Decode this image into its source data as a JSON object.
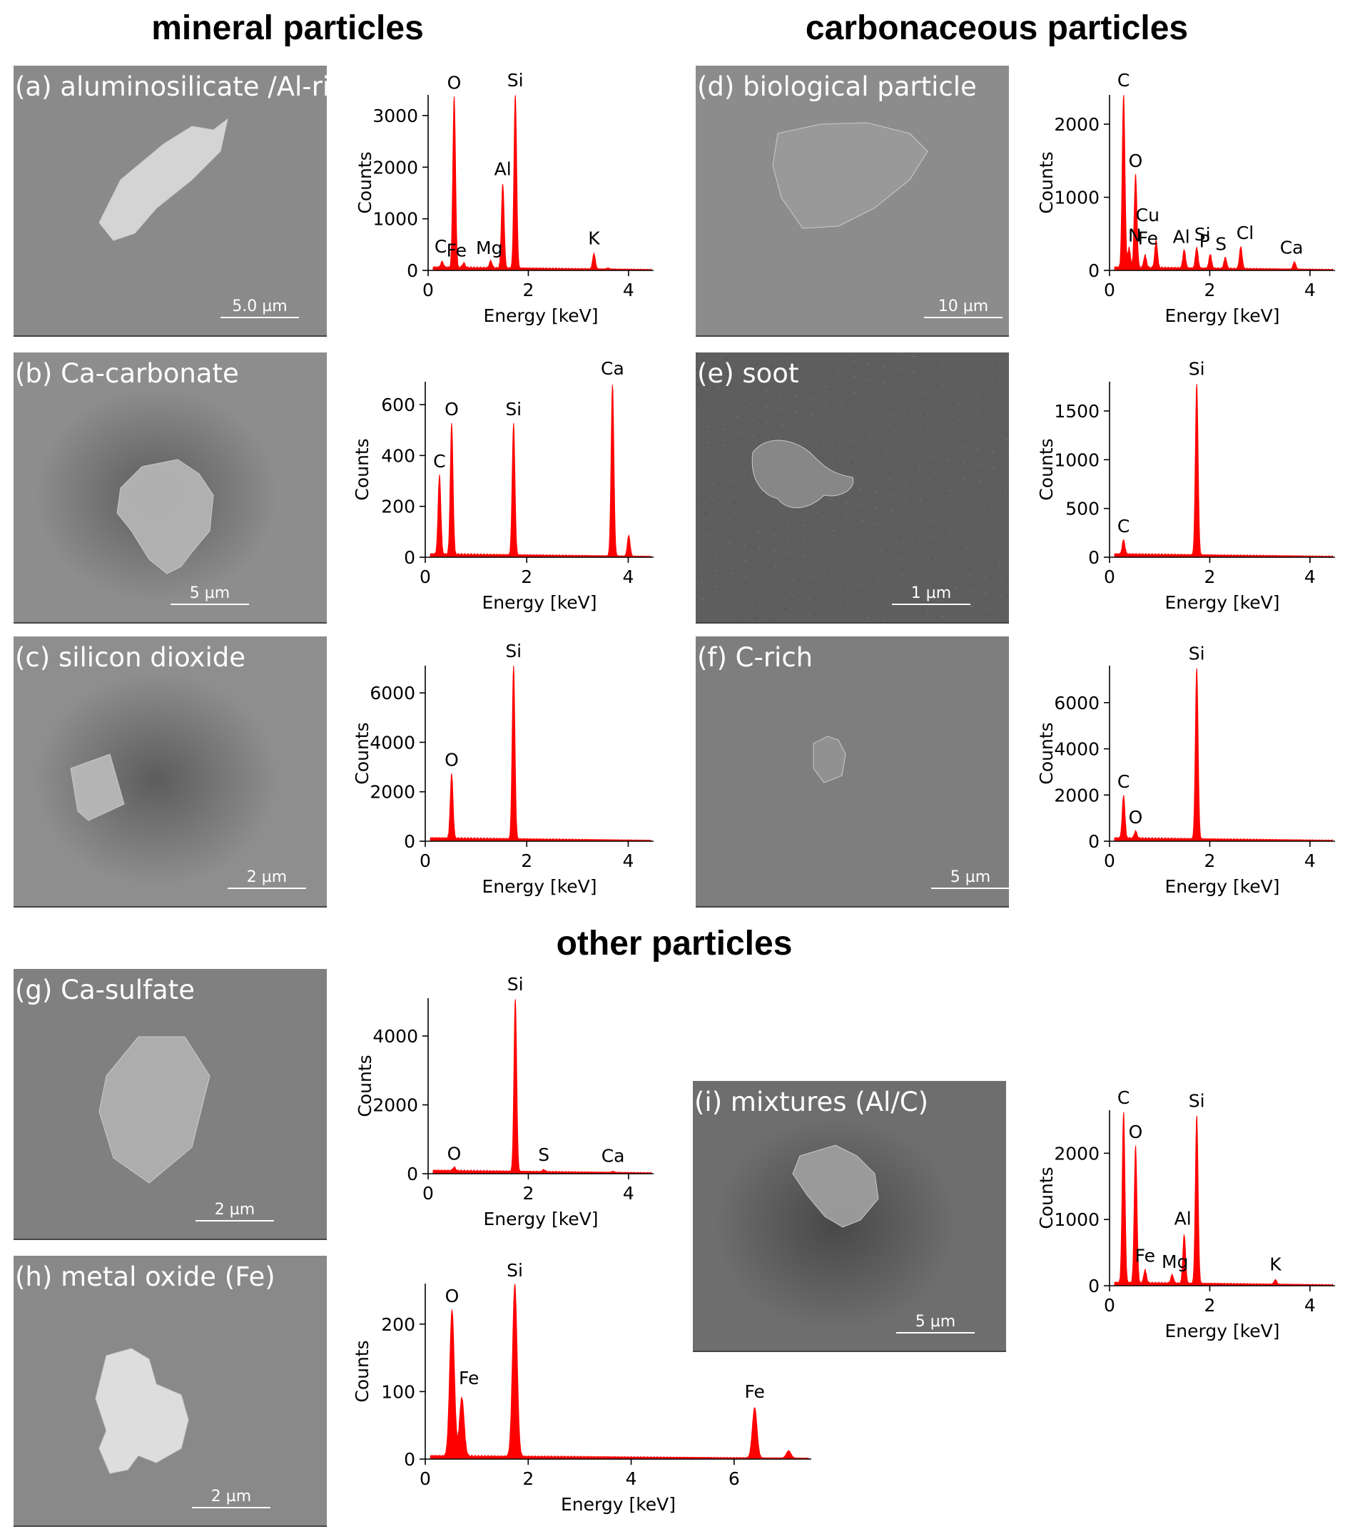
{
  "section_titles": {
    "mineral": "mineral particles",
    "carbonaceous": "carbonaceous particles",
    "other": "other particles"
  },
  "colors": {
    "spectrum": "#ff0000"
  },
  "panels": [
    {
      "id": "a",
      "label": "(a) aluminosilicate /Al-rich",
      "scale_bar": "5.0 µm",
      "background": "#8a8a8a"
    },
    {
      "id": "b",
      "label": "(b) Ca-carbonate",
      "scale_bar": "5 µm",
      "background": "#8d8d8d"
    },
    {
      "id": "c",
      "label": "(c) silicon dioxide",
      "scale_bar": "2 µm",
      "background": "#8e8e8e"
    },
    {
      "id": "d",
      "label": "(d) biological particle",
      "scale_bar": "10 µm",
      "background": "#8c8c8c"
    },
    {
      "id": "e",
      "label": "(e) soot",
      "scale_bar": "1 µm",
      "background": "#5e5e5e"
    },
    {
      "id": "f",
      "label": "(f) C-rich",
      "scale_bar": "5 µm",
      "background": "#7e7e7e"
    },
    {
      "id": "g",
      "label": "(g) Ca-sulfate",
      "scale_bar": "2 µm",
      "background": "#808080"
    },
    {
      "id": "h",
      "label": "(h) metal oxide (Fe)",
      "scale_bar": "2 µm",
      "background": "#898989"
    },
    {
      "id": "i",
      "label": "(i) mixtures (Al/C)",
      "scale_bar": "5 µm",
      "background": "#6e6e6e"
    }
  ],
  "chart_data": [
    {
      "panel": "a",
      "type": "area",
      "xlabel": "Energy [keV]",
      "ylabel": "Counts",
      "xlim": [
        0,
        4.5
      ],
      "ylim": [
        0,
        3400
      ],
      "xticks": [
        0,
        2,
        4
      ],
      "yticks": [
        0,
        1000,
        2000,
        3000
      ],
      "peaks": [
        {
          "x": 0.28,
          "y": 150,
          "label": "C"
        },
        {
          "x": 0.52,
          "y": 3350,
          "label": "O"
        },
        {
          "x": 0.71,
          "y": 130,
          "label": "Fe"
        },
        {
          "x": 1.25,
          "y": 180,
          "label": "Mg"
        },
        {
          "x": 1.49,
          "y": 1680,
          "label": "Al"
        },
        {
          "x": 1.74,
          "y": 3400,
          "label": "Si"
        },
        {
          "x": 3.31,
          "y": 340,
          "label": "K"
        },
        {
          "x": 3.59,
          "y": 60,
          "label": ""
        }
      ]
    },
    {
      "panel": "b",
      "type": "area",
      "xlabel": "Energy [keV]",
      "ylabel": "Counts",
      "xlim": [
        0,
        4.5
      ],
      "ylim": [
        0,
        690
      ],
      "xticks": [
        0,
        2,
        4
      ],
      "yticks": [
        0,
        200,
        400,
        600
      ],
      "peaks": [
        {
          "x": 0.28,
          "y": 320,
          "label": "C"
        },
        {
          "x": 0.52,
          "y": 525,
          "label": "O"
        },
        {
          "x": 1.74,
          "y": 525,
          "label": "Si"
        },
        {
          "x": 3.69,
          "y": 685,
          "label": "Ca"
        },
        {
          "x": 4.01,
          "y": 90,
          "label": ""
        }
      ]
    },
    {
      "panel": "c",
      "type": "area",
      "xlabel": "Energy [keV]",
      "ylabel": "Counts",
      "xlim": [
        0,
        4.5
      ],
      "ylim": [
        0,
        7100
      ],
      "xticks": [
        0,
        2,
        4
      ],
      "yticks": [
        0,
        2000,
        4000,
        6000
      ],
      "peaks": [
        {
          "x": 0.52,
          "y": 2700,
          "label": "O"
        },
        {
          "x": 1.74,
          "y": 7100,
          "label": "Si"
        }
      ]
    },
    {
      "panel": "d",
      "type": "area",
      "xlabel": "Energy [keV]",
      "ylabel": "Counts",
      "xlim": [
        0,
        4.5
      ],
      "ylim": [
        0,
        2400
      ],
      "xticks": [
        0,
        2,
        4
      ],
      "yticks": [
        0,
        1000,
        2000
      ],
      "peaks": [
        {
          "x": 0.28,
          "y": 2400,
          "label": "C"
        },
        {
          "x": 0.39,
          "y": 300,
          "label": "N"
        },
        {
          "x": 0.52,
          "y": 1300,
          "label": "O"
        },
        {
          "x": 0.71,
          "y": 200,
          "label": "Fe"
        },
        {
          "x": 0.93,
          "y": 400,
          "label": "Cu"
        },
        {
          "x": 1.49,
          "y": 280,
          "label": "Al"
        },
        {
          "x": 1.74,
          "y": 310,
          "label": "Si"
        },
        {
          "x": 2.01,
          "y": 220,
          "label": "P"
        },
        {
          "x": 2.31,
          "y": 180,
          "label": "S"
        },
        {
          "x": 2.62,
          "y": 330,
          "label": "Cl"
        },
        {
          "x": 3.69,
          "y": 130,
          "label": "Ca"
        }
      ]
    },
    {
      "panel": "e",
      "type": "area",
      "xlabel": "Energy [keV]",
      "ylabel": "Counts",
      "xlim": [
        0,
        4.5
      ],
      "ylim": [
        0,
        1800
      ],
      "xticks": [
        0,
        2,
        4
      ],
      "yticks": [
        0,
        500,
        1000,
        1500
      ],
      "peaks": [
        {
          "x": 0.28,
          "y": 170,
          "label": "C"
        },
        {
          "x": 1.74,
          "y": 1780,
          "label": "Si"
        }
      ]
    },
    {
      "panel": "f",
      "type": "area",
      "xlabel": "Energy [keV]",
      "ylabel": "Counts",
      "xlim": [
        0,
        4.5
      ],
      "ylim": [
        0,
        7600
      ],
      "xticks": [
        0,
        2,
        4
      ],
      "yticks": [
        0,
        2000,
        4000,
        6000
      ],
      "peaks": [
        {
          "x": 0.28,
          "y": 1950,
          "label": "C"
        },
        {
          "x": 0.52,
          "y": 400,
          "label": "O"
        },
        {
          "x": 1.74,
          "y": 7500,
          "label": "Si"
        }
      ]
    },
    {
      "panel": "g",
      "type": "area",
      "xlabel": "Energy [keV]",
      "ylabel": "Counts",
      "xlim": [
        0,
        4.5
      ],
      "ylim": [
        0,
        5100
      ],
      "xticks": [
        0,
        2,
        4
      ],
      "yticks": [
        0,
        2000,
        4000
      ],
      "peaks": [
        {
          "x": 0.52,
          "y": 160,
          "label": "O"
        },
        {
          "x": 1.74,
          "y": 5080,
          "label": "Si"
        },
        {
          "x": 2.31,
          "y": 120,
          "label": "S"
        },
        {
          "x": 3.69,
          "y": 90,
          "label": "Ca"
        }
      ]
    },
    {
      "panel": "h",
      "type": "area",
      "xlabel": "Energy [keV]",
      "ylabel": "Counts",
      "xlim": [
        0,
        7.5
      ],
      "ylim": [
        0,
        260
      ],
      "xticks": [
        0,
        2,
        4,
        6
      ],
      "yticks": [
        0,
        100,
        200
      ],
      "peaks": [
        {
          "x": 0.52,
          "y": 220,
          "label": "O"
        },
        {
          "x": 0.71,
          "y": 90,
          "label": "Fe"
        },
        {
          "x": 1.74,
          "y": 258,
          "label": "Si"
        },
        {
          "x": 6.4,
          "y": 78,
          "label": "Fe"
        },
        {
          "x": 7.06,
          "y": 14,
          "label": ""
        }
      ]
    },
    {
      "panel": "i",
      "type": "area",
      "xlabel": "Energy [keV]",
      "ylabel": "Counts",
      "xlim": [
        0,
        4.5
      ],
      "ylim": [
        0,
        2650
      ],
      "xticks": [
        0,
        2,
        4
      ],
      "yticks": [
        0,
        1000,
        2000
      ],
      "peaks": [
        {
          "x": 0.28,
          "y": 2620,
          "label": "C"
        },
        {
          "x": 0.52,
          "y": 2100,
          "label": "O"
        },
        {
          "x": 0.71,
          "y": 230,
          "label": "Fe"
        },
        {
          "x": 1.25,
          "y": 160,
          "label": "Mg"
        },
        {
          "x": 1.49,
          "y": 770,
          "label": "Al"
        },
        {
          "x": 1.74,
          "y": 2570,
          "label": "Si"
        },
        {
          "x": 3.31,
          "y": 100,
          "label": "K"
        }
      ]
    }
  ]
}
